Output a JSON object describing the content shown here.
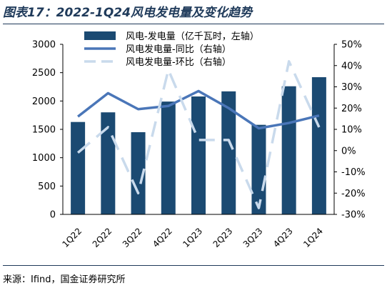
{
  "header": {
    "title": "图表17：2022-1Q24风电发电量及变化趋势"
  },
  "footer": {
    "source": "来源：Ifind，国金证券研究所"
  },
  "colors": {
    "bar": "#1b4a72",
    "line_yoy": "#4a76b8",
    "line_qoq": "#c9daec",
    "title": "#1f3a5a"
  },
  "chart_data": {
    "type": "bar",
    "categories": [
      "1Q22",
      "2Q22",
      "3Q22",
      "4Q22",
      "1Q23",
      "2Q23",
      "3Q23",
      "4Q23",
      "1Q24"
    ],
    "series": [
      {
        "name": "风电-发电量（亿千瓦时，左轴）",
        "type": "bar",
        "axis": "left",
        "values": [
          1630,
          1800,
          1450,
          1990,
          2080,
          2170,
          1580,
          2260,
          2420
        ]
      },
      {
        "name": "风电发电量-同比（右轴）",
        "type": "line",
        "axis": "right",
        "values": [
          16,
          27,
          19.5,
          21,
          28,
          20,
          10.5,
          13,
          16.5
        ]
      },
      {
        "name": "风电发电量-环比（右轴）",
        "type": "line-dashed",
        "axis": "right",
        "values": [
          -1,
          11,
          -20,
          38,
          5,
          5,
          -27,
          42,
          11
        ]
      }
    ],
    "ylim_left": [
      0,
      3000
    ],
    "yticks_left": [
      "0",
      "500",
      "1000",
      "1500",
      "2000",
      "2500",
      "3000"
    ],
    "ylim_right": [
      -30,
      50
    ],
    "yticks_right": [
      "-30%",
      "-20%",
      "-10%",
      "0%",
      "10%",
      "20%",
      "30%",
      "40%",
      "50%"
    ],
    "legend_position": "top-right",
    "grid": false
  }
}
